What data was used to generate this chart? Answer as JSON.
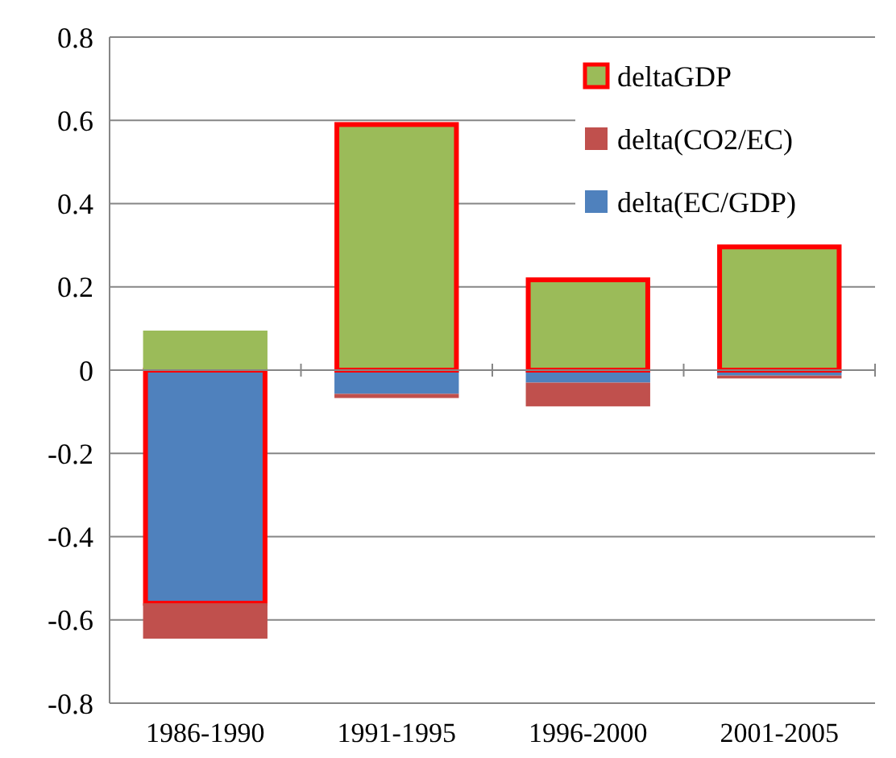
{
  "chart_data": {
    "type": "bar",
    "stacked": true,
    "categories": [
      "1986-1990",
      "1991-1995",
      "1996-2000",
      "2001-2005"
    ],
    "series": [
      {
        "name": "delta(EC/GDP)",
        "color": "#4f81bd",
        "values": [
          -0.56,
          -0.057,
          -0.03,
          -0.013
        ]
      },
      {
        "name": "delta(CO2/EC)",
        "color": "#c0504d",
        "values": [
          -0.085,
          -0.01,
          -0.057,
          -0.007
        ]
      },
      {
        "name": "deltaGDP",
        "color": "#9bbb59",
        "values": [
          0.095,
          0.59,
          0.217,
          0.296
        ]
      }
    ],
    "ylim": [
      -0.8,
      0.8
    ],
    "yticks": [
      -0.8,
      -0.6,
      -0.4,
      -0.2,
      0,
      0.2,
      0.4,
      0.6,
      0.8
    ],
    "grid": "y",
    "legend": "top right"
  }
}
